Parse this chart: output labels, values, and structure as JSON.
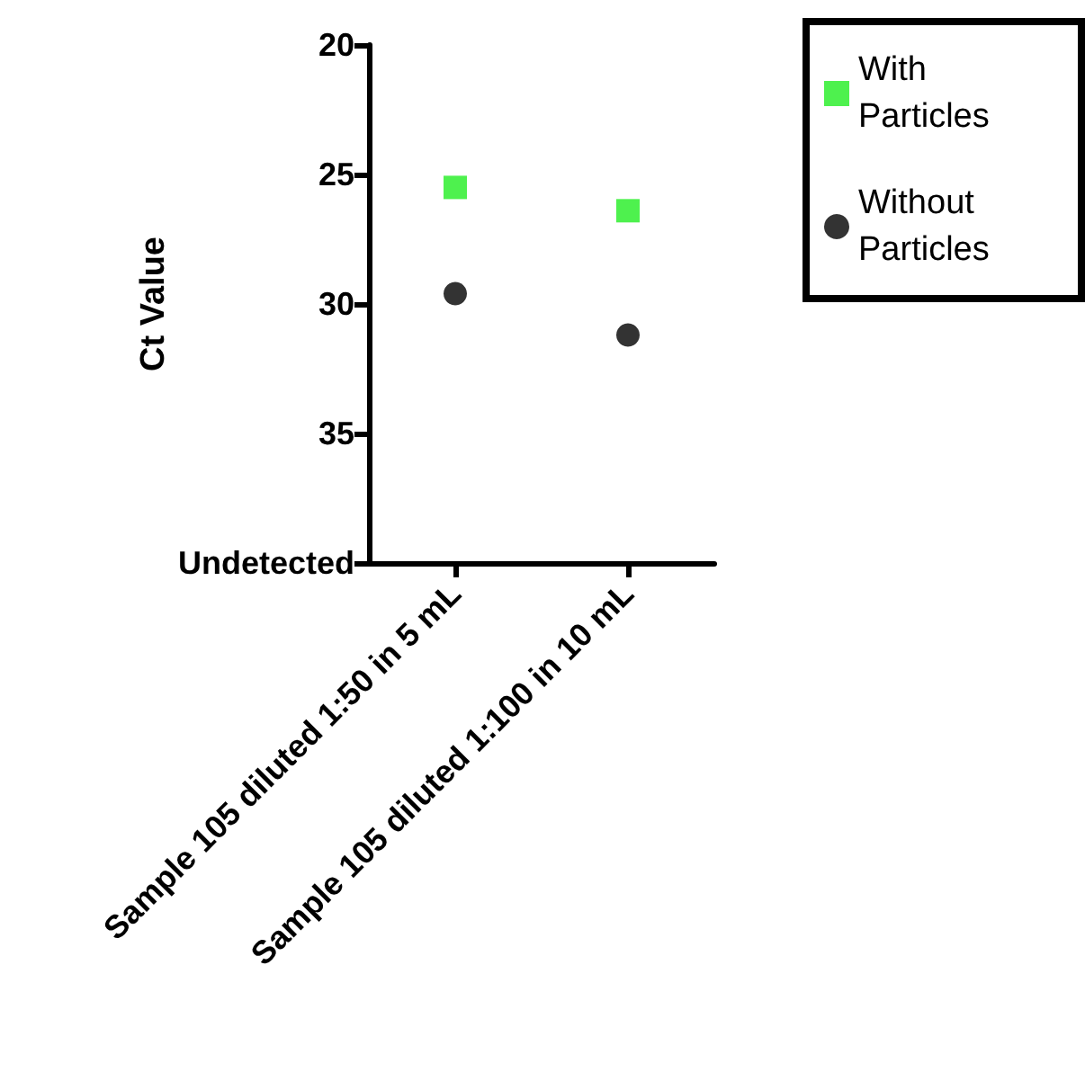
{
  "chart_data": {
    "type": "scatter",
    "ylabel": "Ct Value",
    "categories": [
      "Sample 105 diluted 1:50 in 5 mL",
      "Sample 105 diluted 1:100 in 10 mL"
    ],
    "series": [
      {
        "name": "With Particles",
        "color": "#22ee22",
        "marker": "square",
        "values": [
          25.5,
          26.4
        ]
      },
      {
        "name": "Without Particles",
        "color": "#000000",
        "marker": "circle",
        "values": [
          29.6,
          31.2
        ]
      }
    ],
    "ylim": [
      40,
      20
    ],
    "yticks": [
      20,
      25,
      30,
      35,
      {
        "value": 40,
        "label": "Undetected"
      }
    ],
    "grid": false,
    "legend": "top right"
  }
}
